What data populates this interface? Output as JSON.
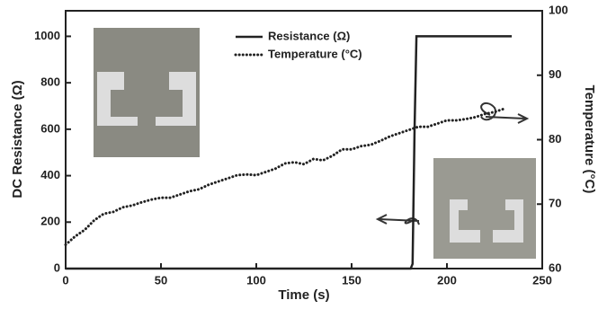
{
  "chart_data": {
    "type": "line",
    "x_label": "Time (s)",
    "y_label": "DC Resistance (Ω)",
    "y2_label": "Temperature (°C)",
    "xlim": [
      0,
      250
    ],
    "xticks": [
      0,
      50,
      100,
      150,
      200,
      250
    ],
    "ylim": [
      0,
      1110
    ],
    "yticks": [
      0,
      200,
      400,
      600,
      800,
      1000
    ],
    "y2lim": [
      60,
      100
    ],
    "y2ticks": [
      60,
      70,
      80,
      90,
      100
    ],
    "series": [
      {
        "name": "Resistance (Ω)",
        "color": "#222222",
        "style": "solid",
        "x": [
          0,
          181,
          182,
          183,
          184,
          234
        ],
        "values": [
          0,
          0,
          20,
          600,
          1000,
          1000
        ]
      },
      {
        "name": "Temperature (°C)",
        "color": "#222222",
        "style": "dotted",
        "axis": "y2",
        "x": [
          0,
          5,
          10,
          15,
          20,
          25,
          30,
          35,
          40,
          45,
          50,
          55,
          60,
          65,
          70,
          75,
          80,
          85,
          90,
          95,
          100,
          105,
          110,
          115,
          120,
          125,
          130,
          135,
          140,
          145,
          150,
          155,
          160,
          165,
          170,
          175,
          180,
          185,
          190,
          195,
          200,
          205,
          210,
          215,
          220,
          225,
          230
        ],
        "values": [
          63.7,
          65,
          66,
          67.5,
          68.5,
          68.8,
          69.5,
          69.8,
          70.3,
          70.7,
          71,
          71,
          71.5,
          72,
          72.3,
          73,
          73.5,
          74,
          74.5,
          74.6,
          74.5,
          75,
          75.5,
          76.3,
          76.5,
          76.2,
          77,
          76.8,
          77.5,
          78.5,
          78.5,
          79,
          79.2,
          79.8,
          80.5,
          81,
          81.5,
          82,
          82,
          82.5,
          83,
          83,
          83.2,
          83.5,
          84,
          84.3,
          84.8
        ]
      }
    ]
  }
}
